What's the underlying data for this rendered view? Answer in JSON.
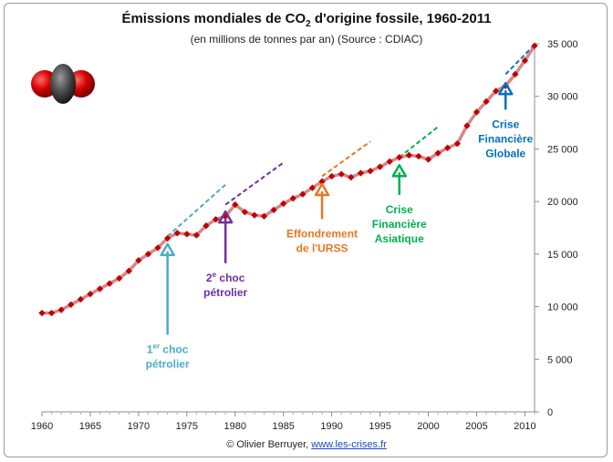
{
  "title_main": "Émissions mondiales de CO",
  "title_sub": "2",
  "title_end": " d'origine fossile, 1960-2011",
  "subtitle": "(en millions de tonnes par an) (Source : CDIAC)",
  "credit_text": "© Olivier Berruyer, ",
  "credit_link": "www.les-crises.fr",
  "molecule_icon": "co2-molecule-icon",
  "chart_data": {
    "type": "line",
    "title": "Émissions mondiales de CO2 d'origine fossile, 1960-2011",
    "subtitle": "(en millions de tonnes par an) (Source : CDIAC)",
    "xlim": [
      1960,
      2011
    ],
    "ylim": [
      0,
      35000
    ],
    "x_ticks": [
      1960,
      1965,
      1970,
      1975,
      1980,
      1985,
      1990,
      1995,
      2000,
      2005,
      2010
    ],
    "y_ticks": [
      0,
      5000,
      10000,
      15000,
      20000,
      25000,
      30000,
      35000
    ],
    "y_tick_labels": [
      "0",
      "5 000",
      "10 000",
      "15 000",
      "20 000",
      "25 000",
      "30 000",
      "35 000"
    ],
    "y_axis_side": "right",
    "grid": false,
    "line_color": "#d9868a",
    "marker_color": "#c00000",
    "x": [
      1960,
      1961,
      1962,
      1963,
      1964,
      1965,
      1966,
      1967,
      1968,
      1969,
      1970,
      1971,
      1972,
      1973,
      1974,
      1975,
      1976,
      1977,
      1978,
      1979,
      1980,
      1981,
      1982,
      1983,
      1984,
      1985,
      1986,
      1987,
      1988,
      1989,
      1990,
      1991,
      1992,
      1993,
      1994,
      1995,
      1996,
      1997,
      1998,
      1999,
      2000,
      2001,
      2002,
      2003,
      2004,
      2005,
      2006,
      2007,
      2008,
      2009,
      2010,
      2011
    ],
    "values": [
      9400,
      9400,
      9700,
      10200,
      10700,
      11200,
      11700,
      12200,
      12700,
      13400,
      14400,
      15000,
      15600,
      16500,
      17000,
      16900,
      16800,
      17700,
      18300,
      18600,
      19700,
      19000,
      18700,
      18600,
      19200,
      19800,
      20300,
      20700,
      21300,
      21900,
      22400,
      22600,
      22300,
      22700,
      22900,
      23300,
      23800,
      24200,
      24400,
      24300,
      24000,
      24600,
      25100,
      25500,
      27200,
      28500,
      29500,
      30500,
      31000,
      32100,
      33400,
      34800
    ],
    "trend_lines": [
      {
        "color": "#4bacc6",
        "x": [
          1973,
          1979
        ],
        "y": [
          16700,
          21600
        ]
      },
      {
        "color": "#7030a0",
        "x": [
          1979,
          1985
        ],
        "y": [
          19700,
          23700
        ]
      },
      {
        "color": "#e87722",
        "x": [
          1989,
          1994
        ],
        "y": [
          22400,
          25700
        ]
      },
      {
        "color": "#00b050",
        "x": [
          1997,
          2001
        ],
        "y": [
          24200,
          27100
        ]
      },
      {
        "color": "#0070c0",
        "x": [
          2008,
          2011
        ],
        "y": [
          32100,
          34900
        ]
      }
    ],
    "annotations": [
      {
        "lines": [
          "1er choc",
          "pétrolier"
        ],
        "color": "#4bacc6",
        "arrow_x": 1973,
        "arrow_y": 16300,
        "text_anchor_year": 1973,
        "text_anchor_value": 5600
      },
      {
        "lines": [
          "2e choc",
          "pétrolier"
        ],
        "color": "#7030a0",
        "arrow_x": 1979,
        "arrow_y": 19400,
        "text_anchor_year": 1979,
        "text_anchor_value": 12400
      },
      {
        "lines": [
          "Effondrement",
          "de l'URSS"
        ],
        "color": "#e87722",
        "arrow_x": 1989,
        "arrow_y": 22000,
        "text_anchor_year": 1989,
        "text_anchor_value": 16600
      },
      {
        "lines": [
          "Crise",
          "Financière",
          "Asiatique"
        ],
        "color": "#00b050",
        "arrow_x": 1997,
        "arrow_y": 23800,
        "text_anchor_year": 1997,
        "text_anchor_value": 18900
      },
      {
        "lines": [
          "Crise",
          "Financière",
          "Globale"
        ],
        "color": "#0070c0",
        "arrow_x": 2008,
        "arrow_y": 31600,
        "text_anchor_year": 2008,
        "text_anchor_value": 27000
      }
    ],
    "annotation_labels": {
      "oil1": {
        "main": "1",
        "sup": "er",
        "rest": " choc",
        "line2": "pétrolier"
      },
      "oil2": {
        "main": "2",
        "sup": "e",
        "rest": " choc",
        "line2": "pétrolier"
      }
    }
  }
}
